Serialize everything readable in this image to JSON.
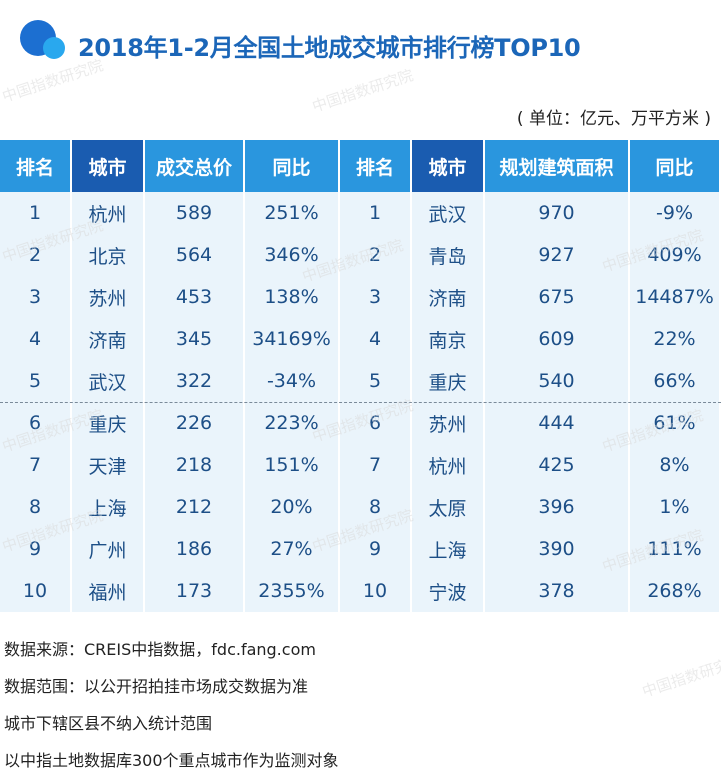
{
  "title": "2018年1-2月全国土地成交城市排行榜TOP10",
  "unit": "( 单位：亿元、万平方米 )",
  "watermark": "中国指数研究院",
  "table": {
    "header": [
      "排名",
      "城市",
      "成交总价",
      "同比",
      "排名",
      "城市",
      "规划建筑面积",
      "同比"
    ],
    "rows": [
      [
        "1",
        "杭州",
        "589",
        "251%",
        "1",
        "武汉",
        "970",
        "-9%"
      ],
      [
        "2",
        "北京",
        "564",
        "346%",
        "2",
        "青岛",
        "927",
        "409%"
      ],
      [
        "3",
        "苏州",
        "453",
        "138%",
        "3",
        "济南",
        "675",
        "14487%"
      ],
      [
        "4",
        "济南",
        "345",
        "34169%",
        "4",
        "南京",
        "609",
        "22%"
      ],
      [
        "5",
        "武汉",
        "322",
        "-34%",
        "5",
        "重庆",
        "540",
        "66%"
      ],
      [
        "6",
        "重庆",
        "226",
        "223%",
        "6",
        "苏州",
        "444",
        "61%"
      ],
      [
        "7",
        "天津",
        "218",
        "151%",
        "7",
        "杭州",
        "425",
        "8%"
      ],
      [
        "8",
        "上海",
        "212",
        "20%",
        "8",
        "太原",
        "396",
        "1%"
      ],
      [
        "9",
        "广州",
        "186",
        "27%",
        "9",
        "上海",
        "390",
        "111%"
      ],
      [
        "10",
        "福州",
        "173",
        "2355%",
        "10",
        "宁波",
        "378",
        "268%"
      ]
    ]
  },
  "notes": [
    "数据来源：CREIS中指数据，fdc.fang.com",
    "数据范围：以公开招拍挂市场成交数据为准",
    "城市下辖区县不纳入统计范围",
    "以中指土地数据库300个重点城市作为监测对象"
  ]
}
